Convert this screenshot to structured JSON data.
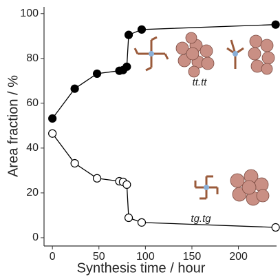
{
  "chart_data": {
    "type": "line",
    "xlabel": "Synthesis time / hour",
    "ylabel": "Area fraction / %",
    "annotations": [
      "tt.tt",
      "tg.tg"
    ],
    "x": [
      0,
      24,
      48,
      72,
      76,
      80,
      82,
      96,
      240
    ],
    "series": [
      {
        "color": "#000000",
        "marker": "filled",
        "values": [
          53.2,
          66.5,
          73.2,
          74.5,
          74.8,
          76.3,
          90.5,
          92.9,
          95.1
        ]
      },
      {
        "color": "#000000",
        "marker": "open",
        "values": [
          46.5,
          33.2,
          26.5,
          25.2,
          24.9,
          23.7,
          8.9,
          6.8,
          4.6
        ]
      }
    ],
    "xlim": [
      -9,
      241
    ],
    "ylim": [
      -3.7,
      103
    ],
    "xticks": [
      0,
      50,
      100,
      150,
      200
    ],
    "yticks": [
      0,
      20,
      40,
      60,
      80,
      100
    ]
  }
}
